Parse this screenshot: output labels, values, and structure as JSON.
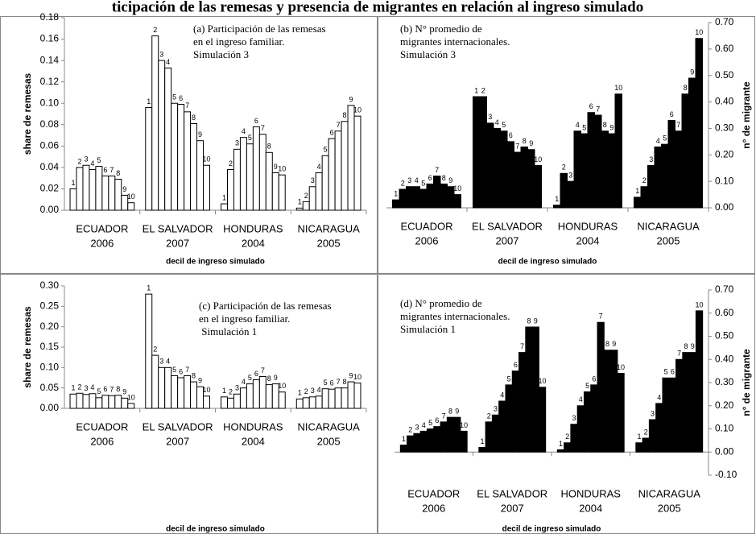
{
  "title": "ticipación de las remesas y presencia de migrantes en relación al ingreso simulado",
  "chart_data": [
    {
      "type": "bar",
      "annotation": [
        "(a) Participación de las remesas",
        "en el ingreso familiar.",
        "Simulación 3"
      ],
      "ylabel": "share de remesas",
      "xlabel": "decil de ingreso simulado",
      "axis_side": "left",
      "categories": [
        "ECUADOR",
        "EL SALVADOR",
        "HONDURAS",
        "NICARAGUA"
      ],
      "category_years": [
        "2006",
        "2007",
        "2004",
        "2005"
      ],
      "deciles": [
        1,
        2,
        3,
        4,
        5,
        6,
        7,
        8,
        9,
        10
      ],
      "color": "#ffffff",
      "values": [
        [
          0.02,
          0.04,
          0.042,
          0.038,
          0.041,
          0.032,
          0.032,
          0.029,
          0.014,
          0.007
        ],
        [
          0.096,
          0.163,
          0.14,
          0.133,
          0.1,
          0.099,
          0.092,
          0.081,
          0.065,
          0.042
        ],
        [
          0.006,
          0.038,
          0.057,
          0.068,
          0.062,
          0.078,
          0.071,
          0.054,
          0.035,
          0.033
        ],
        [
          0.002,
          0.008,
          0.022,
          0.035,
          0.051,
          0.067,
          0.074,
          0.083,
          0.098,
          0.088
        ]
      ],
      "ylim": [
        0,
        0.18
      ],
      "yticks": [
        {
          "value": 0,
          "label": "0.00"
        },
        {
          "value": 0.02,
          "label": "0.02"
        },
        {
          "value": 0.04,
          "label": "0.04"
        },
        {
          "value": 0.06,
          "label": "0.06"
        },
        {
          "value": 0.08,
          "label": "0.08"
        },
        {
          "value": 0.1,
          "label": "0.10"
        },
        {
          "value": 0.12,
          "label": "0.12"
        },
        {
          "value": 0.14,
          "label": "0.14"
        },
        {
          "value": 0.16,
          "label": "0.16"
        },
        {
          "value": 0.18,
          "label": "0.18"
        }
      ]
    },
    {
      "type": "bar",
      "annotation": [
        "(b) N° promedio de",
        "migrantes internacionales.",
        "Simulación 3"
      ],
      "ylabel": "n° de migrante",
      "xlabel": "decil de ingreso simulado",
      "axis_side": "right",
      "categories": [
        "ECUADOR",
        "EL SALVADOR",
        "HONDURAS",
        "NICARAGUA"
      ],
      "category_years": [
        "2006",
        "2007",
        "2004",
        "2005"
      ],
      "deciles": [
        1,
        2,
        3,
        4,
        5,
        6,
        7,
        8,
        9,
        10
      ],
      "color": "#000000",
      "values": [
        [
          0.03,
          0.07,
          0.08,
          0.08,
          0.07,
          0.09,
          0.12,
          0.09,
          0.08,
          0.05
        ],
        [
          0.42,
          0.42,
          0.32,
          0.3,
          0.29,
          0.25,
          0.21,
          0.23,
          0.22,
          0.16
        ],
        [
          0.01,
          0.13,
          0.1,
          0.29,
          0.28,
          0.36,
          0.35,
          0.29,
          0.28,
          0.43
        ],
        [
          0.04,
          0.08,
          0.16,
          0.23,
          0.24,
          0.33,
          0.29,
          0.43,
          0.49,
          0.64
        ]
      ],
      "ylim": [
        0,
        0.7
      ],
      "yticks": [
        {
          "value": 0,
          "label": "0.00"
        },
        {
          "value": 0.1,
          "label": "0.10"
        },
        {
          "value": 0.2,
          "label": "0.20"
        },
        {
          "value": 0.3,
          "label": "0.30"
        },
        {
          "value": 0.4,
          "label": "0.40"
        },
        {
          "value": 0.5,
          "label": "0.50"
        },
        {
          "value": 0.6,
          "label": "0.60"
        },
        {
          "value": 0.7,
          "label": "0.70"
        }
      ]
    },
    {
      "type": "bar",
      "annotation": [
        "(c) Participación de las remesas",
        "en el ingreso familiar.",
        " Simulación 1"
      ],
      "ylabel": "share de remesas",
      "xlabel": "decil de ingreso simulado",
      "axis_side": "left",
      "categories": [
        "ECUADOR",
        "EL SALVADOR",
        "HONDURAS",
        "NICARAGUA"
      ],
      "category_years": [
        "2006",
        "2007",
        "2004",
        "2005"
      ],
      "deciles": [
        1,
        2,
        3,
        4,
        5,
        6,
        7,
        8,
        9,
        10
      ],
      "color": "#ffffff",
      "values": [
        [
          0.035,
          0.037,
          0.034,
          0.036,
          0.026,
          0.032,
          0.031,
          0.032,
          0.025,
          0.012
        ],
        [
          0.28,
          0.13,
          0.1,
          0.1,
          0.08,
          0.075,
          0.08,
          0.065,
          0.053,
          0.03
        ],
        [
          0.028,
          0.025,
          0.035,
          0.05,
          0.06,
          0.07,
          0.078,
          0.058,
          0.06,
          0.04
        ],
        [
          0.023,
          0.026,
          0.028,
          0.03,
          0.048,
          0.047,
          0.05,
          0.05,
          0.065,
          0.062
        ]
      ],
      "ylim": [
        0,
        0.3
      ],
      "yticks": [
        {
          "value": 0,
          "label": "0.00"
        },
        {
          "value": 0.05,
          "label": "0.05"
        },
        {
          "value": 0.1,
          "label": "0.10"
        },
        {
          "value": 0.15,
          "label": "0.15"
        },
        {
          "value": 0.2,
          "label": "0.20"
        },
        {
          "value": 0.25,
          "label": "0.25"
        },
        {
          "value": 0.3,
          "label": "0.30"
        }
      ]
    },
    {
      "type": "bar",
      "annotation": [
        "(d) N° promedio de",
        "migrantes internacionales.",
        "Simulación 1"
      ],
      "ylabel": "n° de migrante",
      "xlabel": "decil de ingreso simulado",
      "axis_side": "right",
      "categories": [
        "ECUADOR",
        "EL SALVADOR",
        "HONDURAS",
        "NICARAGUA"
      ],
      "category_years": [
        "2006",
        "2007",
        "2004",
        "2005"
      ],
      "deciles": [
        1,
        2,
        3,
        4,
        5,
        6,
        7,
        8,
        9,
        10
      ],
      "color": "#000000",
      "values": [
        [
          0.03,
          0.07,
          0.08,
          0.09,
          0.1,
          0.11,
          0.13,
          0.15,
          0.15,
          0.09
        ],
        [
          0.02,
          0.13,
          0.16,
          0.22,
          0.29,
          0.35,
          0.43,
          0.54,
          0.54,
          0.28
        ],
        [
          0.01,
          0.04,
          0.12,
          0.2,
          0.26,
          0.29,
          0.56,
          0.44,
          0.44,
          0.34
        ],
        [
          0.04,
          0.06,
          0.14,
          0.21,
          0.32,
          0.32,
          0.4,
          0.43,
          0.43,
          0.61
        ]
      ],
      "ylim": [
        -0.1,
        0.7
      ],
      "yticks": [
        {
          "value": -0.1,
          "label": "-0.10"
        },
        {
          "value": 0,
          "label": "0.00"
        },
        {
          "value": 0.1,
          "label": "0.10"
        },
        {
          "value": 0.2,
          "label": "0.20"
        },
        {
          "value": 0.3,
          "label": "0.30"
        },
        {
          "value": 0.4,
          "label": "0.40"
        },
        {
          "value": 0.5,
          "label": "0.50"
        },
        {
          "value": 0.6,
          "label": "0.60"
        },
        {
          "value": 0.7,
          "label": "0.70"
        }
      ]
    }
  ]
}
